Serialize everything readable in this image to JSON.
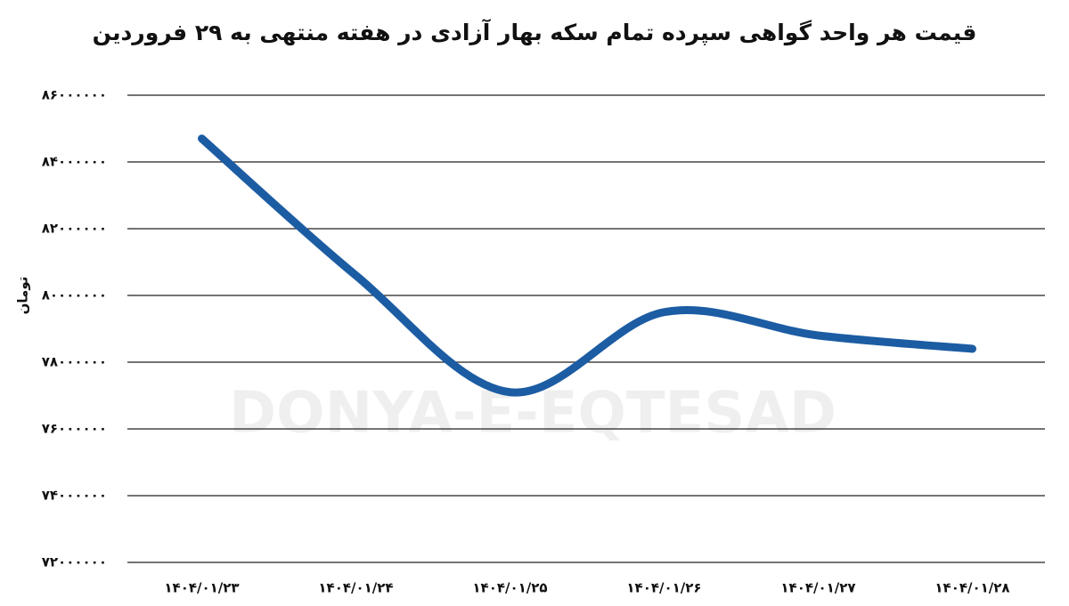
{
  "chart_data": {
    "type": "line",
    "title": "قیمت هر واحد گواهی سپرده تمام سکه بهار آزادی در هفته منتهی به ۲۹ فروردین",
    "ylabel": "تومان",
    "watermark": "DONYA-E-EQTESAD",
    "categories": [
      "۱۴۰۴/۰۱/۲۳",
      "۱۴۰۴/۰۱/۲۴",
      "۱۴۰۴/۰۱/۲۵",
      "۱۴۰۴/۰۱/۲۶",
      "۱۴۰۴/۰۱/۲۷",
      "۱۴۰۴/۰۱/۲۸"
    ],
    "values": [
      84700000,
      80600000,
      77100000,
      79500000,
      78800000,
      78400000
    ],
    "color": "#1c5ca3",
    "ylim": [
      72000000,
      86000000
    ],
    "yticks": [
      {
        "value": 72000000,
        "label": "۷۲۰۰۰۰۰۰"
      },
      {
        "value": 74000000,
        "label": "۷۴۰۰۰۰۰۰"
      },
      {
        "value": 76000000,
        "label": "۷۶۰۰۰۰۰۰"
      },
      {
        "value": 78000000,
        "label": "۷۸۰۰۰۰۰۰"
      },
      {
        "value": 80000000,
        "label": "۸۰۰۰۰۰۰۰"
      },
      {
        "value": 82000000,
        "label": "۸۲۰۰۰۰۰۰"
      },
      {
        "value": 84000000,
        "label": "۸۴۰۰۰۰۰۰"
      },
      {
        "value": 86000000,
        "label": "۸۶۰۰۰۰۰۰"
      }
    ],
    "grid": true
  }
}
